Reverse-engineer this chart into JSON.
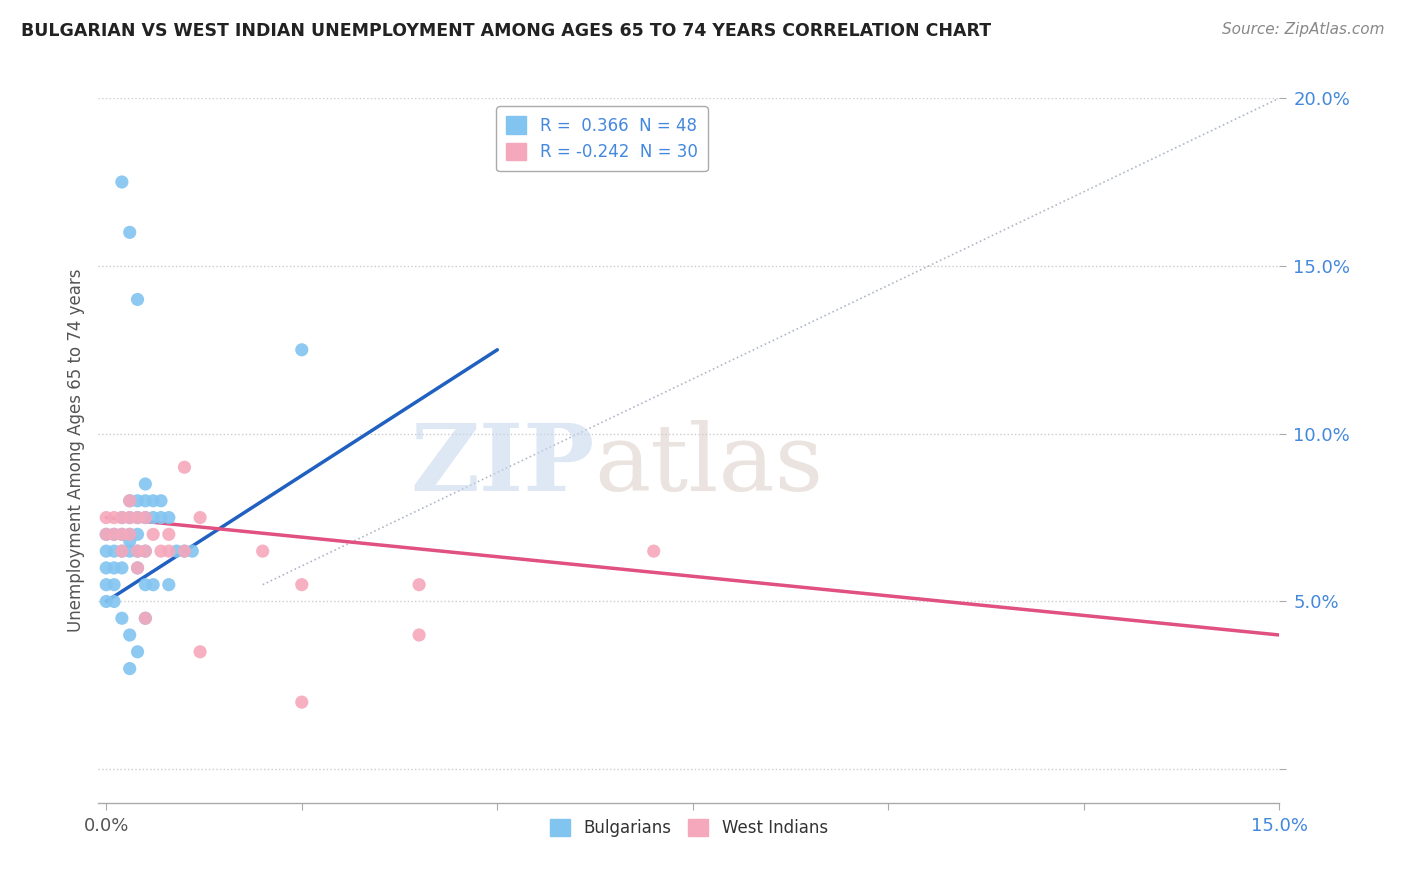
{
  "title": "BULGARIAN VS WEST INDIAN UNEMPLOYMENT AMONG AGES 65 TO 74 YEARS CORRELATION CHART",
  "source": "Source: ZipAtlas.com",
  "ylabel": "Unemployment Among Ages 65 to 74 years",
  "watermark_zip": "ZIP",
  "watermark_atlas": "atlas",
  "legend_blue_label": "R =  0.366  N = 48",
  "legend_pink_label": "R = -0.242  N = 30",
  "xlim": [
    -0.001,
    0.15
  ],
  "ylim": [
    -0.01,
    0.2
  ],
  "xticks": [
    0.0,
    0.025,
    0.05,
    0.075,
    0.1,
    0.125,
    0.15
  ],
  "yticks": [
    0.0,
    0.05,
    0.1,
    0.15,
    0.2
  ],
  "blue_scatter": [
    [
      0.0,
      0.07
    ],
    [
      0.0,
      0.065
    ],
    [
      0.0,
      0.06
    ],
    [
      0.001,
      0.07
    ],
    [
      0.001,
      0.065
    ],
    [
      0.001,
      0.06
    ],
    [
      0.001,
      0.055
    ],
    [
      0.002,
      0.075
    ],
    [
      0.002,
      0.07
    ],
    [
      0.002,
      0.065
    ],
    [
      0.002,
      0.06
    ],
    [
      0.003,
      0.08
    ],
    [
      0.003,
      0.075
    ],
    [
      0.003,
      0.07
    ],
    [
      0.003,
      0.068
    ],
    [
      0.003,
      0.065
    ],
    [
      0.004,
      0.08
    ],
    [
      0.004,
      0.075
    ],
    [
      0.004,
      0.07
    ],
    [
      0.004,
      0.065
    ],
    [
      0.004,
      0.06
    ],
    [
      0.005,
      0.085
    ],
    [
      0.005,
      0.08
    ],
    [
      0.005,
      0.075
    ],
    [
      0.005,
      0.065
    ],
    [
      0.005,
      0.055
    ],
    [
      0.006,
      0.08
    ],
    [
      0.006,
      0.075
    ],
    [
      0.006,
      0.055
    ],
    [
      0.007,
      0.08
    ],
    [
      0.007,
      0.075
    ],
    [
      0.008,
      0.075
    ],
    [
      0.008,
      0.055
    ],
    [
      0.009,
      0.065
    ],
    [
      0.01,
      0.065
    ],
    [
      0.011,
      0.065
    ],
    [
      0.002,
      0.045
    ],
    [
      0.003,
      0.04
    ],
    [
      0.004,
      0.035
    ],
    [
      0.002,
      0.175
    ],
    [
      0.003,
      0.16
    ],
    [
      0.004,
      0.14
    ],
    [
      0.025,
      0.125
    ],
    [
      0.0,
      0.055
    ],
    [
      0.001,
      0.05
    ],
    [
      0.0,
      0.05
    ],
    [
      0.005,
      0.045
    ],
    [
      0.003,
      0.03
    ]
  ],
  "pink_scatter": [
    [
      0.0,
      0.075
    ],
    [
      0.0,
      0.07
    ],
    [
      0.001,
      0.075
    ],
    [
      0.001,
      0.07
    ],
    [
      0.002,
      0.075
    ],
    [
      0.002,
      0.07
    ],
    [
      0.002,
      0.065
    ],
    [
      0.003,
      0.08
    ],
    [
      0.003,
      0.075
    ],
    [
      0.003,
      0.07
    ],
    [
      0.004,
      0.075
    ],
    [
      0.004,
      0.065
    ],
    [
      0.004,
      0.06
    ],
    [
      0.005,
      0.075
    ],
    [
      0.005,
      0.065
    ],
    [
      0.005,
      0.045
    ],
    [
      0.006,
      0.07
    ],
    [
      0.007,
      0.065
    ],
    [
      0.008,
      0.07
    ],
    [
      0.008,
      0.065
    ],
    [
      0.01,
      0.09
    ],
    [
      0.01,
      0.065
    ],
    [
      0.012,
      0.075
    ],
    [
      0.02,
      0.065
    ],
    [
      0.025,
      0.055
    ],
    [
      0.04,
      0.055
    ],
    [
      0.07,
      0.065
    ],
    [
      0.012,
      0.035
    ],
    [
      0.04,
      0.04
    ],
    [
      0.025,
      0.02
    ]
  ],
  "blue_line_x": [
    0.0,
    0.05
  ],
  "blue_line_y": [
    0.05,
    0.125
  ],
  "pink_line_x": [
    0.0,
    0.15
  ],
  "pink_line_y": [
    0.075,
    0.04
  ],
  "diag_line_x": [
    0.02,
    0.15
  ],
  "diag_line_y": [
    0.055,
    0.2
  ],
  "blue_color": "#82c4f0",
  "pink_color": "#f5a8bc",
  "blue_line_color": "#2060c0",
  "pink_line_color": "#e05080",
  "diag_color": "#b0b8c8",
  "bg_color": "#ffffff",
  "title_color": "#222222",
  "axis_label_color": "#555555",
  "tick_color_left": "#555555",
  "tick_color_right": "#4488dd",
  "legend_text_color": "#4488dd"
}
